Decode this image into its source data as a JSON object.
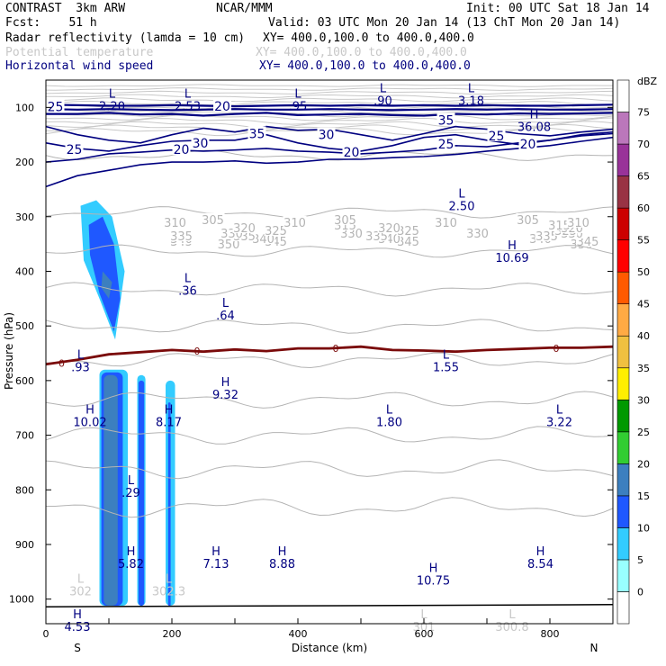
{
  "header": {
    "model": "CONTRAST  3km ARW",
    "org": "NCAR/MMM",
    "init": "Init: 00 UTC Sat 18 Jan 14",
    "fcst": "Fcst:    51 h",
    "valid": "Valid: 03 UTC Mon 20 Jan 14 (13 ChT Mon 20 Jan 14)",
    "fields": [
      {
        "name": "Radar reflectivity (lamda = 10 cm)",
        "xy": "XY= 400.0,100.0 to 400.0,400.0",
        "color": "#000000"
      },
      {
        "name": "Potential temperature",
        "xy": "XY= 400.0,100.0 to 400.0,400.0",
        "color": "#c8c8c8"
      },
      {
        "name": "Horizontal wind speed",
        "xy": "XY= 400.0,100.0 to 400.0,400.0",
        "color": "#000080"
      }
    ]
  },
  "chart_data": {
    "type": "cross-section",
    "xlabel": "Distance (km)",
    "ylabel": "Pressure (hPa)",
    "xlim": [
      0,
      900
    ],
    "ylim": [
      1045,
      50
    ],
    "x_ticks": [
      0,
      200,
      400,
      600,
      800
    ],
    "x_end_labels": [
      "S",
      "N"
    ],
    "y_ticks": [
      100,
      200,
      300,
      400,
      500,
      600,
      700,
      800,
      900,
      1000
    ],
    "colorbar": {
      "unit": "dBZ",
      "levels": [
        0,
        5,
        10,
        15,
        20,
        25,
        30,
        35,
        40,
        45,
        50,
        55,
        60,
        65,
        70,
        75
      ],
      "colors": [
        "#ffffff",
        "#99ffff",
        "#33ccff",
        "#1f58ff",
        "#3c7fbf",
        "#32cd32",
        "#009900",
        "#ffee00",
        "#f0c040",
        "#ffaa44",
        "#ff5a00",
        "#ff0000",
        "#cc0000",
        "#993344",
        "#993399",
        "#bb77bb",
        "#ffffff"
      ]
    },
    "theta_levels": [
      {
        "value": 350,
        "p": 188,
        "labels": [
          [
            290,
            350
          ],
          [
            850,
            350
          ]
        ]
      },
      {
        "value": 345,
        "p": 292,
        "labels": [
          [
            215,
            345
          ],
          [
            365,
            345
          ],
          [
            575,
            345
          ],
          [
            860,
            345
          ]
        ]
      },
      {
        "value": 340,
        "p": 363,
        "labels": [
          [
            215,
            340
          ],
          [
            345,
            340
          ],
          [
            545,
            340
          ],
          [
            785,
            340
          ]
        ]
      },
      {
        "value": 335,
        "p": 433,
        "labels": [
          [
            215,
            335
          ],
          [
            315,
            335
          ],
          [
            525,
            335
          ],
          [
            795,
            335
          ]
        ]
      },
      {
        "value": 330,
        "p": 500,
        "labels": [
          [
            295,
            330
          ],
          [
            485,
            330
          ],
          [
            685,
            330
          ],
          [
            835,
            330
          ]
        ]
      },
      {
        "value": 325,
        "p": 562,
        "labels": [
          [
            365,
            325
          ],
          [
            575,
            325
          ],
          [
            825,
            325
          ]
        ]
      },
      {
        "value": 320,
        "p": 635,
        "labels": [
          [
            315,
            320
          ],
          [
            545,
            320
          ],
          [
            835,
            320
          ]
        ]
      },
      {
        "value": 315,
        "p": 700,
        "labels": [
          [
            475,
            315
          ],
          [
            815,
            315
          ]
        ]
      },
      {
        "value": 310,
        "p": 762,
        "labels": [
          [
            205,
            310
          ],
          [
            395,
            310
          ],
          [
            635,
            310
          ],
          [
            845,
            310
          ]
        ]
      },
      {
        "value": 305,
        "p": 832,
        "labels": [
          [
            265,
            305
          ],
          [
            475,
            305
          ],
          [
            765,
            305
          ]
        ]
      }
    ],
    "wind_levels": [
      {
        "value": 20,
        "labels": [
          [
            280,
            98
          ],
          [
            215,
            177
          ],
          [
            485,
            182
          ],
          [
            765,
            167
          ]
        ]
      },
      {
        "value": 25,
        "labels": [
          [
            15,
            99
          ],
          [
            45,
            177
          ],
          [
            635,
            167
          ],
          [
            715,
            152
          ]
        ]
      },
      {
        "value": 30,
        "labels": [
          [
            245,
            165
          ],
          [
            445,
            150
          ]
        ]
      },
      {
        "value": 35,
        "labels": [
          [
            335,
            148
          ],
          [
            635,
            123
          ]
        ]
      }
    ],
    "zero_line_label": "0",
    "extrema": [
      {
        "type": "L",
        "value": "2.20",
        "x": 105,
        "p": 82,
        "color": "#000080"
      },
      {
        "type": "L",
        "value": "2.53",
        "x": 225,
        "p": 82,
        "color": "#000080"
      },
      {
        "type": "L",
        "value": ".95",
        "x": 400,
        "p": 82,
        "color": "#000080"
      },
      {
        "type": "L",
        "value": ".90",
        "x": 535,
        "p": 72,
        "color": "#000080"
      },
      {
        "type": "L",
        "value": "3.18",
        "x": 675,
        "p": 72,
        "color": "#000080"
      },
      {
        "type": "H",
        "value": "36.08",
        "x": 775,
        "p": 120,
        "color": "#000080"
      },
      {
        "type": "L",
        "value": "2.50",
        "x": 660,
        "p": 265,
        "color": "#000080"
      },
      {
        "type": "H",
        "value": "10.69",
        "x": 740,
        "p": 360,
        "color": "#000080"
      },
      {
        "type": "L",
        "value": ".36",
        "x": 225,
        "p": 420,
        "color": "#000080"
      },
      {
        "type": "L",
        "value": ".64",
        "x": 285,
        "p": 465,
        "color": "#000080"
      },
      {
        "type": "L",
        "value": ".93",
        "x": 55,
        "p": 560,
        "color": "#000080"
      },
      {
        "type": "L",
        "value": "1.55",
        "x": 635,
        "p": 560,
        "color": "#000080"
      },
      {
        "type": "H",
        "value": "9.32",
        "x": 285,
        "p": 610,
        "color": "#000080"
      },
      {
        "type": "H",
        "value": "10.02",
        "x": 70,
        "p": 660,
        "color": "#000080"
      },
      {
        "type": "H",
        "value": "8.17",
        "x": 195,
        "p": 660,
        "color": "#000080"
      },
      {
        "type": "L",
        "value": "1.80",
        "x": 545,
        "p": 660,
        "color": "#000080"
      },
      {
        "type": "L",
        "value": "3.22",
        "x": 815,
        "p": 660,
        "color": "#000080"
      },
      {
        "type": "L",
        "value": ".29",
        "x": 135,
        "p": 790,
        "color": "#000080"
      },
      {
        "type": "H",
        "value": "5.82",
        "x": 135,
        "p": 920,
        "color": "#000080"
      },
      {
        "type": "H",
        "value": "7.13",
        "x": 270,
        "p": 920,
        "color": "#000080"
      },
      {
        "type": "H",
        "value": "8.88",
        "x": 375,
        "p": 920,
        "color": "#000080"
      },
      {
        "type": "H",
        "value": "10.75",
        "x": 615,
        "p": 950,
        "color": "#000080"
      },
      {
        "type": "H",
        "value": "8.54",
        "x": 785,
        "p": 920,
        "color": "#000080"
      },
      {
        "type": "H",
        "value": "4.53",
        "x": 50,
        "p": 1035,
        "color": "#000080"
      },
      {
        "type": "L",
        "value": "302",
        "x": 55,
        "p": 970,
        "color": "#c8c8c8"
      },
      {
        "type": "L",
        "value": "302.3",
        "x": 195,
        "p": 970,
        "color": "#c8c8c8"
      },
      {
        "type": "L",
        "value": "301",
        "x": 600,
        "p": 1035,
        "color": "#c8c8c8"
      },
      {
        "type": "L",
        "value": "300.8",
        "x": 740,
        "p": 1035,
        "color": "#c8c8c8"
      }
    ],
    "reflectivity_cells": [
      {
        "dbz": 5,
        "outline": [
          [
            55,
            280
          ],
          [
            80,
            270
          ],
          [
            105,
            300
          ],
          [
            125,
            400
          ],
          [
            110,
            525
          ],
          [
            85,
            450
          ],
          [
            60,
            380
          ]
        ]
      },
      {
        "dbz": 10,
        "outline": [
          [
            68,
            315
          ],
          [
            90,
            300
          ],
          [
            108,
            350
          ],
          [
            118,
            450
          ],
          [
            108,
            510
          ],
          [
            85,
            440
          ],
          [
            70,
            370
          ]
        ]
      },
      {
        "dbz": 15,
        "outline": [
          [
            90,
            400
          ],
          [
            105,
            420
          ],
          [
            100,
            450
          ],
          [
            88,
            430
          ]
        ]
      },
      {
        "dbz": 5,
        "col": [
          85,
          130,
          580
        ]
      },
      {
        "dbz": 10,
        "col": [
          88,
          122,
          585
        ]
      },
      {
        "dbz": 15,
        "col": [
          92,
          114,
          590
        ]
      },
      {
        "dbz": 5,
        "col": [
          145,
          158,
          590
        ]
      },
      {
        "dbz": 10,
        "col": [
          147,
          156,
          600
        ]
      },
      {
        "dbz": 5,
        "col": [
          190,
          205,
          600
        ]
      },
      {
        "dbz": 10,
        "col": [
          194,
          198,
          640
        ]
      }
    ]
  }
}
